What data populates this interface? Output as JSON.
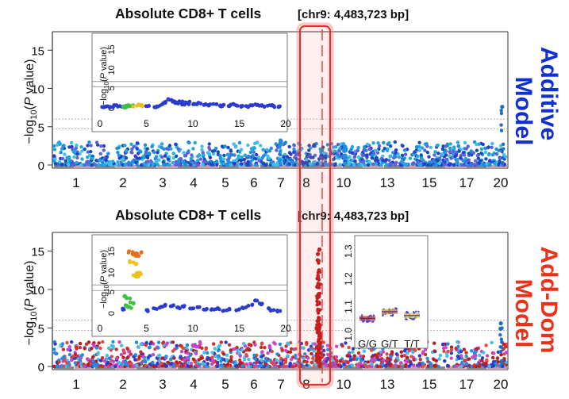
{
  "figure": {
    "top_title": "Absolute CD8+ T cells",
    "top_locus": "[chr9: 4,483,723 bp]",
    "bottom_title": "Absolute CD8+ T cells",
    "bottom_locus": "[chr9: 4,483,723 bp]",
    "side_label_top": [
      "Additive",
      "Model"
    ],
    "side_label_bottom": [
      "Add-Dom",
      "Model"
    ],
    "colors": {
      "additive_label": "#1030d0",
      "adddom_label": "#e8331c",
      "highlight": "#e03030",
      "ref_line": "#999999"
    }
  },
  "chart_data": [
    {
      "type": "scatter",
      "name": "additive-manhattan",
      "title": "Absolute CD8+ T cells [chr9: 4,483,723 bp]",
      "ylabel": "-log10(P value)",
      "y_ticks": [
        0,
        5,
        10,
        15
      ],
      "ylim": [
        0,
        17
      ],
      "chromosome_ticks": [
        "1",
        "2",
        "3",
        "4",
        "5",
        "6",
        "7",
        "8",
        "10",
        "13",
        "15",
        "17",
        "20"
      ],
      "reference_lines": [
        4.7,
        6.0
      ],
      "peaks": [
        {
          "chr": "7",
          "value": 3.2
        },
        {
          "chr": "10",
          "value": 2.4
        },
        {
          "chr": "20",
          "value": 7.6
        }
      ],
      "inset": {
        "ylabel": "-log10(P value)",
        "x_ticks": [
          "0",
          "5",
          "10",
          "15",
          "20"
        ],
        "y_ticks": [
          "0",
          "5",
          "10",
          "15"
        ],
        "xlim": [
          0,
          20
        ],
        "ylim": [
          0,
          17
        ],
        "reference_lines": [
          5.5,
          6.8
        ],
        "points": [
          [
            0.5,
            0.7
          ],
          [
            1.0,
            0.8
          ],
          [
            1.4,
            0.6
          ],
          [
            1.9,
            0.9
          ],
          [
            2.3,
            0.7
          ],
          [
            2.8,
            0.6
          ],
          [
            3.2,
            0.9
          ],
          [
            3.6,
            1.0
          ],
          [
            4.0,
            0.8
          ],
          [
            4.4,
            1.1
          ],
          [
            4.8,
            0.9
          ],
          [
            5.2,
            0.7
          ],
          [
            6.0,
            0.6
          ],
          [
            6.4,
            0.8
          ],
          [
            6.8,
            1.4
          ],
          [
            7.2,
            1.7
          ],
          [
            7.6,
            2.4
          ],
          [
            8.0,
            2.0
          ],
          [
            8.4,
            1.5
          ],
          [
            8.8,
            1.8
          ],
          [
            9.2,
            1.3
          ],
          [
            9.6,
            1.7
          ],
          [
            10.0,
            1.4
          ],
          [
            10.5,
            1.2
          ],
          [
            11.0,
            1.5
          ],
          [
            11.5,
            1.3
          ],
          [
            12.0,
            1.1
          ],
          [
            12.5,
            1.2
          ],
          [
            13.0,
            0.9
          ],
          [
            13.5,
            1.0
          ],
          [
            14.0,
            0.8
          ],
          [
            14.5,
            1.2
          ],
          [
            15.0,
            0.9
          ],
          [
            15.5,
            0.8
          ],
          [
            16.0,
            0.7
          ],
          [
            16.5,
            1.0
          ],
          [
            17.0,
            1.2
          ],
          [
            17.5,
            0.9
          ],
          [
            18.0,
            0.8
          ],
          [
            18.5,
            1.0
          ],
          [
            19.0,
            0.7
          ],
          [
            19.5,
            0.6
          ]
        ]
      }
    },
    {
      "type": "scatter",
      "name": "adddom-manhattan",
      "title": "Absolute CD8+ T cells [chr9: 4,483,723 bp]",
      "ylabel": "-log10(P value)",
      "y_ticks": [
        0,
        5,
        10,
        15
      ],
      "ylim": [
        0,
        17
      ],
      "chromosome_ticks": [
        "1",
        "2",
        "3",
        "4",
        "5",
        "6",
        "7",
        "8",
        "10",
        "13",
        "15",
        "17",
        "20"
      ],
      "reference_lines": [
        4.7,
        6.0
      ],
      "peaks": [
        {
          "chr": "9",
          "value": 15.2
        },
        {
          "chr": "9",
          "value": 14.6
        },
        {
          "chr": "9",
          "value": 13.8
        },
        {
          "chr": "9",
          "value": 12.5
        },
        {
          "chr": "9",
          "value": 10.4
        },
        {
          "chr": "9",
          "value": 9.4
        },
        {
          "chr": "9",
          "value": 6.3
        },
        {
          "chr": "9",
          "value": 5.1
        },
        {
          "chr": "9",
          "value": 4.3
        },
        {
          "chr": "20",
          "value": 5.6
        }
      ],
      "inset": {
        "ylabel": "-log10(P value)",
        "x_ticks": [
          "0",
          "5",
          "10",
          "15",
          "20"
        ],
        "y_ticks": [
          "0",
          "5",
          "10",
          "15"
        ],
        "xlim": [
          0,
          20
        ],
        "ylim": [
          0,
          17
        ],
        "reference_lines": [
          5.5,
          6.8
        ],
        "points": [
          [
            3.5,
            14.5
          ],
          [
            3.8,
            14.0
          ],
          [
            4.1,
            13.6
          ],
          [
            4.4,
            14.3
          ],
          [
            3.6,
            12.2
          ],
          [
            4.0,
            11.8
          ],
          [
            4.3,
            9.6
          ],
          [
            3.9,
            9.1
          ],
          [
            4.6,
            9.4
          ],
          [
            4.2,
            8.9
          ],
          [
            2.8,
            4.2
          ],
          [
            3.2,
            3.8
          ],
          [
            3.6,
            2.6
          ],
          [
            3.0,
            2.1
          ],
          [
            3.4,
            1.6
          ],
          [
            2.6,
            1.2
          ],
          [
            5.3,
            0.8
          ],
          [
            6.2,
            1.2
          ],
          [
            6.8,
            1.6
          ],
          [
            7.4,
            2.1
          ],
          [
            8.0,
            1.9
          ],
          [
            8.6,
            1.5
          ],
          [
            9.2,
            1.8
          ],
          [
            10.0,
            1.3
          ],
          [
            10.8,
            1.6
          ],
          [
            11.5,
            1.2
          ],
          [
            12.2,
            1.0
          ],
          [
            12.9,
            1.3
          ],
          [
            13.6,
            0.9
          ],
          [
            14.3,
            1.1
          ],
          [
            15.0,
            1.0
          ],
          [
            15.7,
            1.4
          ],
          [
            16.4,
            2.1
          ],
          [
            17.1,
            3.3
          ],
          [
            17.6,
            2.4
          ],
          [
            18.2,
            1.3
          ],
          [
            18.8,
            0.9
          ],
          [
            19.4,
            0.7
          ]
        ]
      },
      "boxplot": {
        "categories": [
          "G/G",
          "G/T",
          "T/T"
        ],
        "medians": [
          1.048,
          1.072,
          1.058
        ],
        "y_ticks": [
          "1.0",
          "1.1",
          "1.2",
          "1.3"
        ],
        "ylim": [
          0.98,
          1.33
        ]
      }
    }
  ]
}
